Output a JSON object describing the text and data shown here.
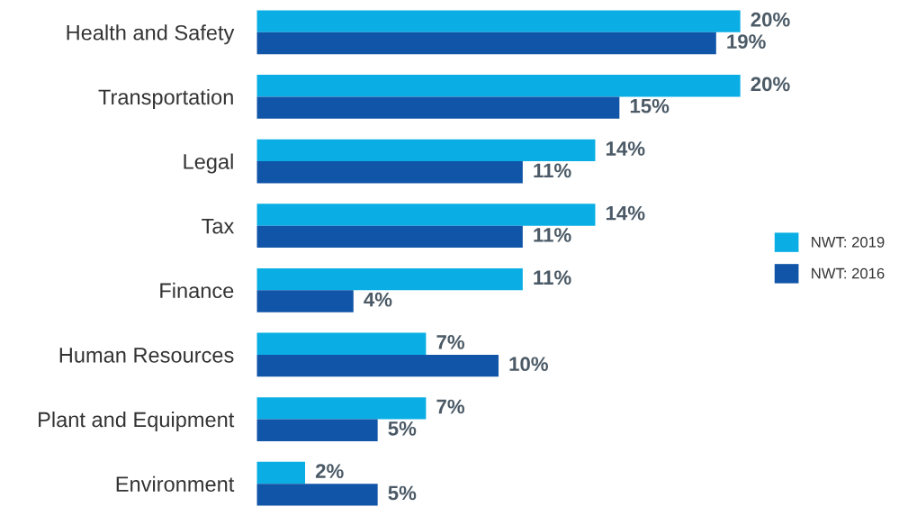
{
  "chart_data": {
    "type": "bar",
    "orientation": "horizontal",
    "legend": "right",
    "categories": [
      "Health and Safety",
      "Transportation",
      "Legal",
      "Tax",
      "Finance",
      "Human Resources",
      "Plant and Equipment",
      "Environment"
    ],
    "series": [
      {
        "name": "NWT: 2019",
        "color": "#0aaee4",
        "values": [
          20,
          20,
          14,
          14,
          11,
          7,
          7,
          2
        ],
        "value_labels": [
          "20%",
          "20%",
          "14%",
          "14%",
          "11%",
          "7%",
          "7%",
          "2%"
        ]
      },
      {
        "name": "NWT: 2016",
        "color": "#1155a8",
        "values": [
          19,
          15,
          11,
          11,
          4,
          10,
          5,
          5
        ],
        "value_labels": [
          "19%",
          "15%",
          "11%",
          "11%",
          "4%",
          "10%",
          "5%",
          "5%"
        ]
      }
    ]
  }
}
